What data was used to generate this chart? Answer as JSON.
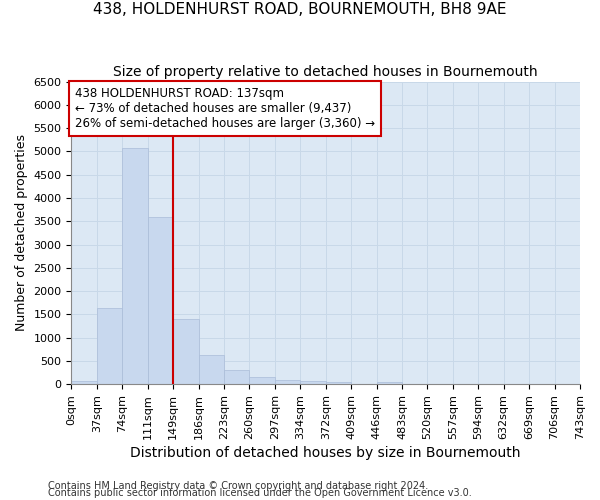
{
  "title1": "438, HOLDENHURST ROAD, BOURNEMOUTH, BH8 9AE",
  "title2": "Size of property relative to detached houses in Bournemouth",
  "xlabel": "Distribution of detached houses by size in Bournemouth",
  "ylabel": "Number of detached properties",
  "footer1": "Contains HM Land Registry data © Crown copyright and database right 2024.",
  "footer2": "Contains public sector information licensed under the Open Government Licence v3.0.",
  "bin_labels": [
    "0sqm",
    "37sqm",
    "74sqm",
    "111sqm",
    "149sqm",
    "186sqm",
    "223sqm",
    "260sqm",
    "297sqm",
    "334sqm",
    "372sqm",
    "409sqm",
    "446sqm",
    "483sqm",
    "520sqm",
    "557sqm",
    "594sqm",
    "632sqm",
    "669sqm",
    "706sqm",
    "743sqm"
  ],
  "bar_values": [
    75,
    1640,
    5080,
    3590,
    1410,
    620,
    310,
    155,
    100,
    60,
    55,
    0,
    55,
    0,
    0,
    0,
    0,
    0,
    0,
    0
  ],
  "bar_color": "#c8d8ee",
  "bar_edge_color": "#aabcd8",
  "vline_bin_index": 4,
  "annotation_text": "438 HOLDENHURST ROAD: 137sqm\n← 73% of detached houses are smaller (9,437)\n26% of semi-detached houses are larger (3,360) →",
  "vline_color": "#cc0000",
  "annotation_box_facecolor": "#ffffff",
  "annotation_box_edgecolor": "#cc0000",
  "ylim": [
    0,
    6500
  ],
  "yticks": [
    0,
    500,
    1000,
    1500,
    2000,
    2500,
    3000,
    3500,
    4000,
    4500,
    5000,
    5500,
    6000,
    6500
  ],
  "grid_color": "#c8d8e8",
  "background_color": "#dce8f4",
  "title1_fontsize": 11,
  "title2_fontsize": 10,
  "xlabel_fontsize": 10,
  "ylabel_fontsize": 9,
  "tick_fontsize": 8,
  "annotation_fontsize": 8.5,
  "footer_fontsize": 7
}
